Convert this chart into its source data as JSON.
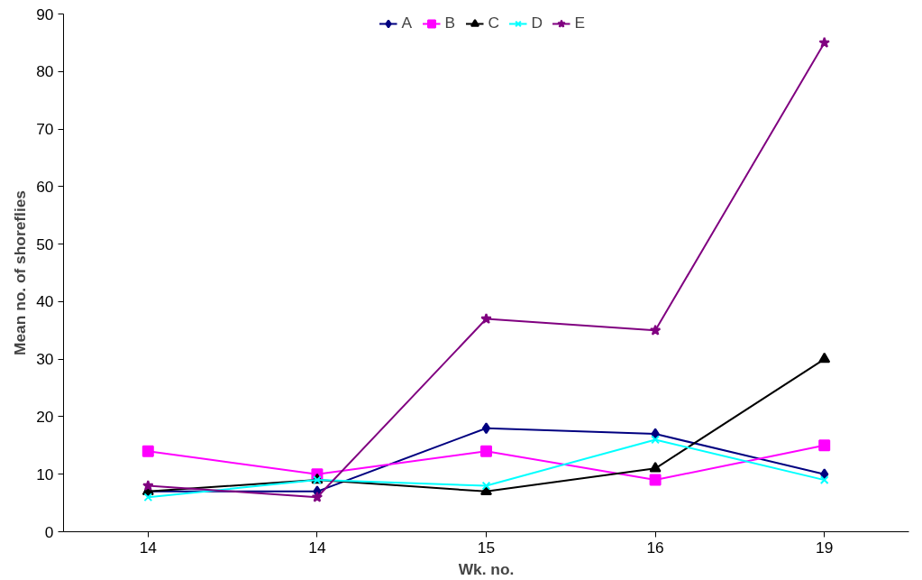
{
  "chart_data": {
    "type": "line",
    "xlabel": "Wk. no.",
    "ylabel": "Mean no. of shoreflies",
    "categories": [
      "14",
      "14",
      "15",
      "16",
      "19"
    ],
    "ylim": [
      0,
      90
    ],
    "yticks": [
      0,
      10,
      20,
      30,
      40,
      50,
      60,
      70,
      80,
      90
    ],
    "grid": false,
    "legend": "top",
    "series": [
      {
        "name": "A",
        "color": "#000080",
        "marker": "diamond",
        "values": [
          7,
          7,
          18,
          17,
          10
        ]
      },
      {
        "name": "B",
        "color": "#ff00ff",
        "marker": "square",
        "values": [
          14,
          10,
          14,
          9,
          15
        ]
      },
      {
        "name": "C",
        "color": "#000000",
        "marker": "triangle",
        "values": [
          7,
          9,
          7,
          11,
          30
        ]
      },
      {
        "name": "D",
        "color": "#00ffff",
        "marker": "cross",
        "values": [
          6,
          9,
          8,
          16,
          9
        ]
      },
      {
        "name": "E",
        "color": "#800080",
        "marker": "star",
        "values": [
          8,
          6,
          37,
          35,
          85
        ]
      }
    ]
  }
}
